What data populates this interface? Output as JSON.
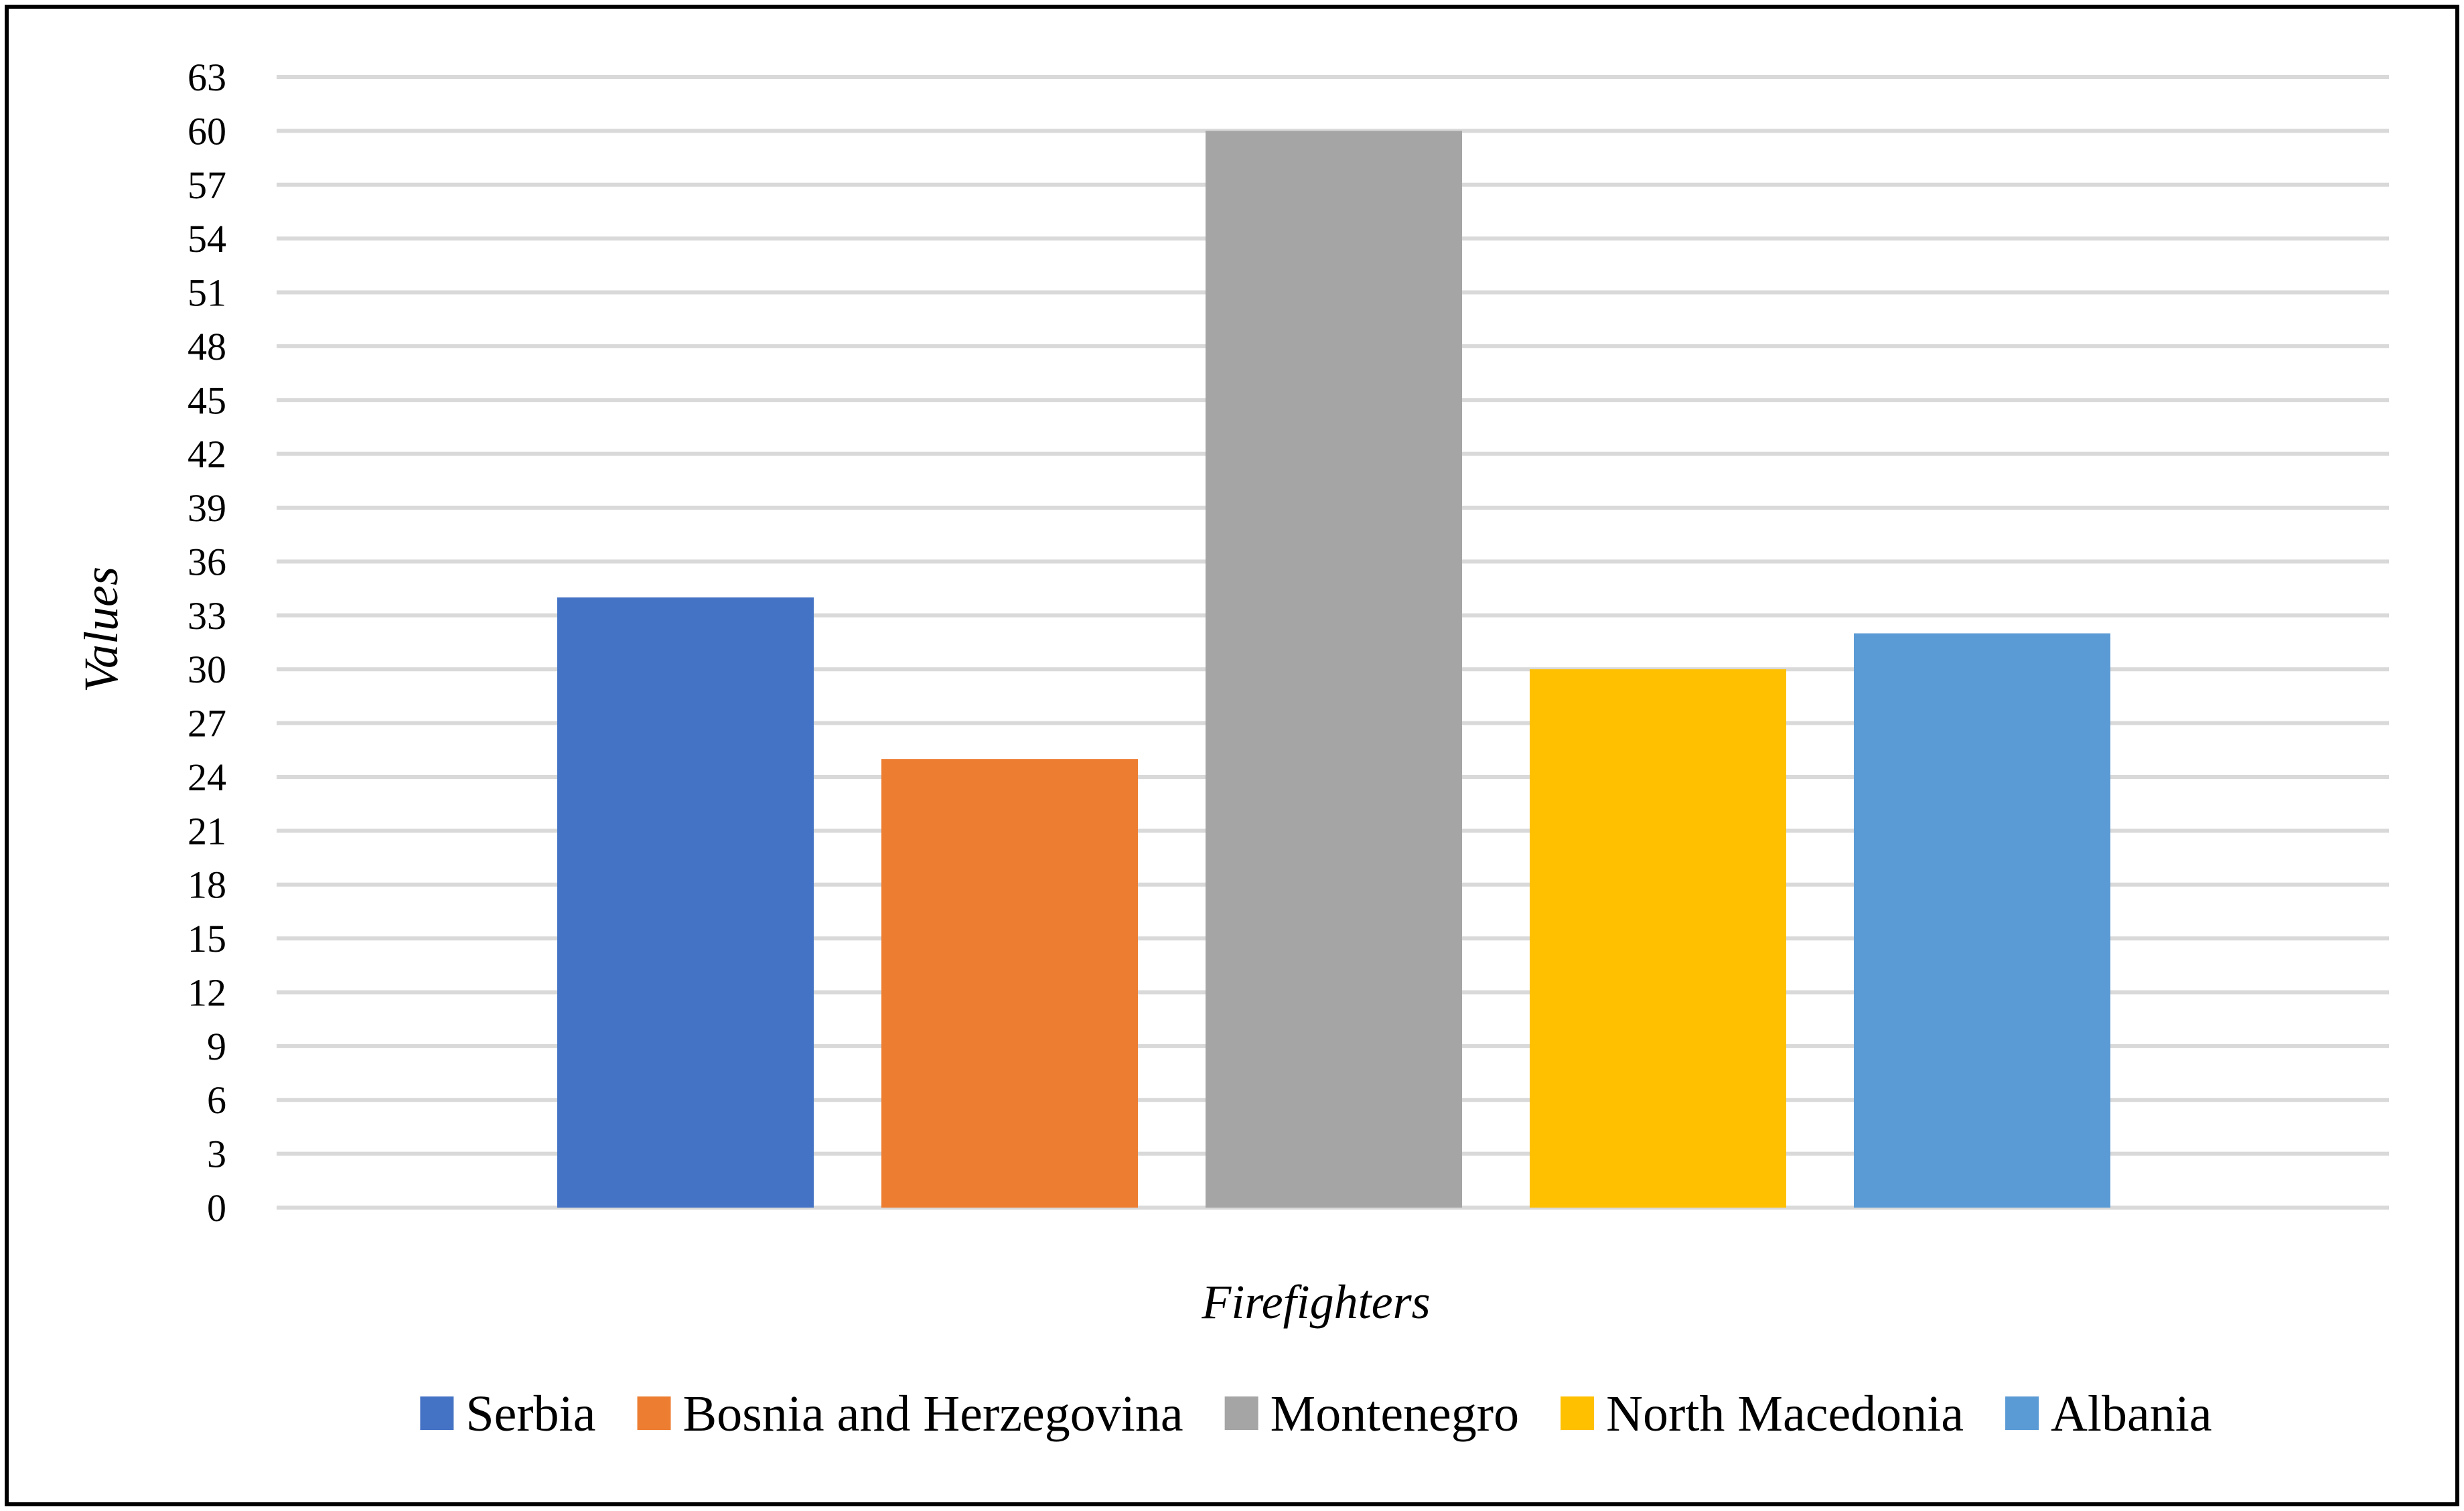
{
  "chart_data": {
    "type": "bar",
    "title": "",
    "xlabel": "Firefighters",
    "ylabel": "Values",
    "ylim": [
      0,
      63
    ],
    "ytick_step": 3,
    "grid": true,
    "legend_placement": "bottom",
    "categories": [
      "Firefighters"
    ],
    "series": [
      {
        "name": "Serbia",
        "values": [
          34
        ],
        "color": "#4472c4"
      },
      {
        "name": "Bosnia and Herzegovina",
        "values": [
          25
        ],
        "color": "#ed7d31"
      },
      {
        "name": "Montenegro",
        "values": [
          60
        ],
        "color": "#a5a5a5"
      },
      {
        "name": "North Macedonia",
        "values": [
          30
        ],
        "color": "#ffc000"
      },
      {
        "name": "Albania",
        "values": [
          32
        ],
        "color": "#5b9bd5"
      }
    ]
  }
}
